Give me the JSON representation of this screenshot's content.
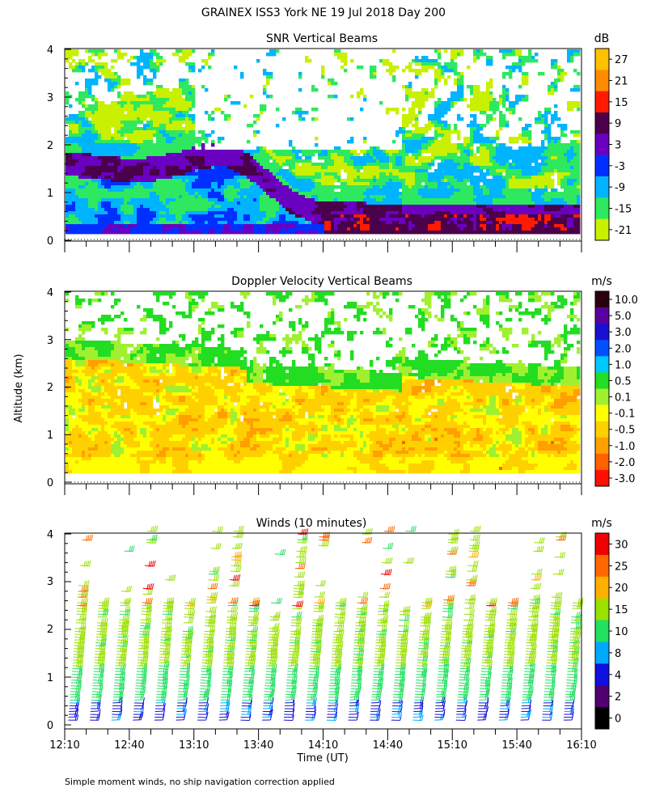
{
  "figure": {
    "title": "GRAINEX ISS3 York NE  19 Jul 2018 Day 200",
    "ylabel": "Altitude (km)",
    "xlabel": "Time (UT)",
    "footnote": "Simple moment winds, no ship navigation correction applied"
  },
  "chart_data": [
    {
      "type": "heatmap",
      "title": "SNR Vertical Beams",
      "xlabel": "Time (UT)",
      "ylabel": "Altitude (km)",
      "x_ticks": [
        "12:10",
        "12:40",
        "13:10",
        "13:40",
        "14:10",
        "14:40",
        "15:10",
        "15:40",
        "16:10"
      ],
      "y_ticks": [
        "0",
        "1",
        "2",
        "3",
        "4"
      ],
      "ylim": [
        0,
        4.1
      ],
      "colorbar": {
        "unit": "dB",
        "labels": [
          "27",
          "21",
          "15",
          "9",
          "3",
          "-3",
          "-9",
          "-15",
          "-21"
        ],
        "colors": [
          "#ffc000",
          "#ff8c00",
          "#ff1a00",
          "#4a004a",
          "#6a00c0",
          "#0030ff",
          "#00b4ff",
          "#2ee860",
          "#c8f000"
        ]
      },
      "features": {
        "boundary_layer_top_km": [
          1.6,
          1.55,
          1.5,
          1.45,
          1.5,
          1.6,
          1.75,
          1.8,
          1.6,
          1.2,
          0.8,
          0.6,
          0.55,
          0.55,
          0.5,
          0.5,
          0.5,
          0.5,
          0.5,
          0.5,
          0.5,
          0.5,
          0.5,
          0.5
        ],
        "strong_echo_layer": "0.3–0.6 km after 14:40"
      }
    },
    {
      "type": "heatmap",
      "title": "Doppler Velocity Vertical Beams",
      "xlabel": "Time (UT)",
      "ylabel": "Altitude (km)",
      "x_ticks": [
        "12:10",
        "12:40",
        "13:10",
        "13:40",
        "14:10",
        "14:40",
        "15:10",
        "15:40",
        "16:10"
      ],
      "y_ticks": [
        "0",
        "1",
        "2",
        "3",
        "4"
      ],
      "ylim": [
        0,
        4.1
      ],
      "colorbar": {
        "unit": "m/s",
        "labels": [
          "10.0",
          "5.0",
          "3.0",
          "2.0",
          "1.0",
          "0.5",
          "0.1",
          "-0.1",
          "-0.5",
          "-1.0",
          "-2.0",
          "-3.0"
        ],
        "colors": [
          "#280010",
          "#5a00a0",
          "#1a10d0",
          "#0050ff",
          "#00c8ff",
          "#22dd22",
          "#a0f030",
          "#ffff00",
          "#ffd000",
          "#ffa000",
          "#ff6000",
          "#ff1000"
        ]
      }
    },
    {
      "type": "scatter",
      "subtype": "wind_barbs",
      "title": "Winds (10 minutes)",
      "xlabel": "Time (UT)",
      "ylabel": "Altitude (km)",
      "x_ticks": [
        "12:10",
        "12:40",
        "13:10",
        "13:40",
        "14:10",
        "14:40",
        "15:10",
        "15:40",
        "16:10"
      ],
      "y_ticks": [
        "0",
        "1",
        "2",
        "3",
        "4"
      ],
      "ylim": [
        0,
        4.1
      ],
      "colorbar": {
        "unit": "m/s",
        "labels": [
          "30",
          "25",
          "20",
          "15",
          "10",
          "8",
          "4",
          "2",
          "0"
        ],
        "colors": [
          "#ee0000",
          "#ff6800",
          "#ffb000",
          "#9ae000",
          "#22e060",
          "#00a8ff",
          "#1010e0",
          "#500070",
          "#000000"
        ]
      },
      "profile_times_UT": [
        "12:10",
        "12:20",
        "12:30",
        "12:40",
        "12:50",
        "13:00",
        "13:10",
        "13:20",
        "13:30",
        "13:40",
        "13:50",
        "14:00",
        "14:10",
        "14:20",
        "14:30",
        "14:40",
        "14:50",
        "15:00",
        "15:10",
        "15:20",
        "15:30",
        "15:40",
        "15:50",
        "16:00"
      ],
      "typical_speed_ms": "10–20"
    }
  ]
}
